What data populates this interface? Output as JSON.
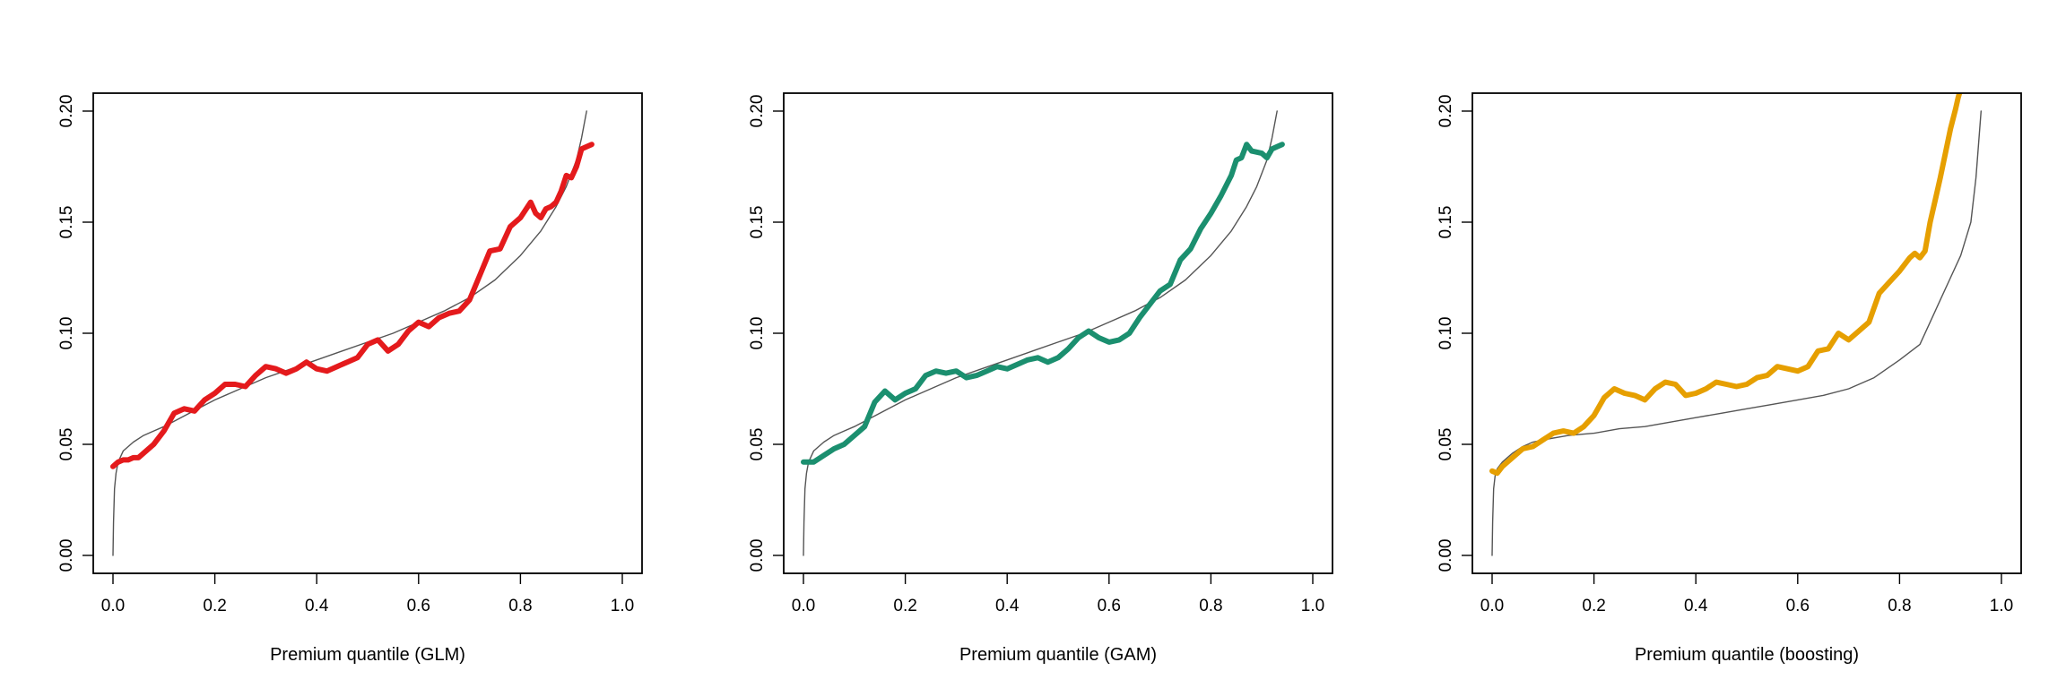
{
  "chart_data": [
    {
      "type": "line",
      "title": "",
      "xlabel": "Premium quantile (GLM)",
      "ylabel": "",
      "xlim": [
        0,
        1
      ],
      "ylim": [
        0,
        0.2
      ],
      "xticks": [
        "0.0",
        "0.2",
        "0.4",
        "0.6",
        "0.8",
        "1.0"
      ],
      "yticks": [
        "0.00",
        "0.05",
        "0.10",
        "0.15",
        "0.20"
      ],
      "grid": false,
      "series": [
        {
          "color": "#e41a1c",
          "x": [
            0.0,
            0.01,
            0.02,
            0.03,
            0.04,
            0.05,
            0.06,
            0.08,
            0.1,
            0.12,
            0.14,
            0.16,
            0.18,
            0.2,
            0.22,
            0.24,
            0.26,
            0.28,
            0.3,
            0.32,
            0.34,
            0.36,
            0.38,
            0.4,
            0.42,
            0.44,
            0.46,
            0.48,
            0.5,
            0.52,
            0.54,
            0.56,
            0.58,
            0.6,
            0.62,
            0.64,
            0.66,
            0.68,
            0.7,
            0.72,
            0.74,
            0.76,
            0.78,
            0.8,
            0.82,
            0.83,
            0.84,
            0.85,
            0.86,
            0.87,
            0.88,
            0.89,
            0.9,
            0.91,
            0.92,
            0.93,
            0.94
          ],
          "y": [
            0.04,
            0.042,
            0.043,
            0.043,
            0.044,
            0.044,
            0.046,
            0.05,
            0.056,
            0.064,
            0.066,
            0.065,
            0.07,
            0.073,
            0.077,
            0.077,
            0.076,
            0.081,
            0.085,
            0.084,
            0.082,
            0.084,
            0.087,
            0.084,
            0.083,
            0.085,
            0.087,
            0.089,
            0.095,
            0.097,
            0.092,
            0.095,
            0.101,
            0.105,
            0.103,
            0.107,
            0.109,
            0.11,
            0.115,
            0.126,
            0.137,
            0.138,
            0.148,
            0.152,
            0.159,
            0.154,
            0.152,
            0.156,
            0.157,
            0.159,
            0.164,
            0.171,
            0.17,
            0.175,
            0.183,
            0.184,
            0.185
          ]
        },
        {
          "color": "#555555",
          "x": [
            0.0,
            0.001,
            0.003,
            0.006,
            0.01,
            0.02,
            0.04,
            0.06,
            0.08,
            0.1,
            0.15,
            0.2,
            0.25,
            0.3,
            0.35,
            0.4,
            0.45,
            0.5,
            0.55,
            0.6,
            0.65,
            0.7,
            0.75,
            0.8,
            0.84,
            0.87,
            0.89,
            0.91,
            0.92,
            0.93
          ],
          "y": [
            0.0,
            0.015,
            0.03,
            0.037,
            0.042,
            0.047,
            0.051,
            0.054,
            0.056,
            0.058,
            0.064,
            0.07,
            0.075,
            0.08,
            0.084,
            0.088,
            0.092,
            0.096,
            0.1,
            0.105,
            0.11,
            0.116,
            0.124,
            0.135,
            0.146,
            0.157,
            0.166,
            0.178,
            0.188,
            0.2
          ]
        }
      ]
    },
    {
      "type": "line",
      "title": "",
      "xlabel": "Premium quantile (GAM)",
      "ylabel": "",
      "xlim": [
        0,
        1
      ],
      "ylim": [
        0,
        0.2
      ],
      "xticks": [
        "0.0",
        "0.2",
        "0.4",
        "0.6",
        "0.8",
        "1.0"
      ],
      "yticks": [
        "0.00",
        "0.05",
        "0.10",
        "0.15",
        "0.20"
      ],
      "grid": false,
      "series": [
        {
          "color": "#1b8f6f",
          "x": [
            0.0,
            0.02,
            0.04,
            0.06,
            0.08,
            0.1,
            0.12,
            0.14,
            0.16,
            0.18,
            0.2,
            0.22,
            0.24,
            0.26,
            0.28,
            0.3,
            0.32,
            0.34,
            0.36,
            0.38,
            0.4,
            0.42,
            0.44,
            0.46,
            0.48,
            0.5,
            0.52,
            0.54,
            0.56,
            0.58,
            0.6,
            0.62,
            0.64,
            0.66,
            0.68,
            0.7,
            0.72,
            0.74,
            0.76,
            0.78,
            0.8,
            0.82,
            0.84,
            0.85,
            0.86,
            0.87,
            0.88,
            0.9,
            0.91,
            0.92,
            0.93,
            0.94
          ],
          "y": [
            0.042,
            0.042,
            0.045,
            0.048,
            0.05,
            0.054,
            0.058,
            0.069,
            0.074,
            0.07,
            0.073,
            0.075,
            0.081,
            0.083,
            0.082,
            0.083,
            0.08,
            0.081,
            0.083,
            0.085,
            0.084,
            0.086,
            0.088,
            0.089,
            0.087,
            0.089,
            0.093,
            0.098,
            0.101,
            0.098,
            0.096,
            0.097,
            0.1,
            0.107,
            0.113,
            0.119,
            0.122,
            0.133,
            0.138,
            0.147,
            0.154,
            0.162,
            0.171,
            0.178,
            0.179,
            0.185,
            0.182,
            0.181,
            0.179,
            0.183,
            0.184,
            0.185
          ]
        },
        {
          "color": "#555555",
          "x": [
            0.0,
            0.001,
            0.003,
            0.006,
            0.01,
            0.02,
            0.04,
            0.06,
            0.08,
            0.1,
            0.15,
            0.2,
            0.25,
            0.3,
            0.35,
            0.4,
            0.45,
            0.5,
            0.55,
            0.6,
            0.65,
            0.7,
            0.75,
            0.8,
            0.84,
            0.87,
            0.89,
            0.91,
            0.92,
            0.93
          ],
          "y": [
            0.0,
            0.015,
            0.03,
            0.037,
            0.042,
            0.047,
            0.051,
            0.054,
            0.056,
            0.058,
            0.064,
            0.07,
            0.075,
            0.08,
            0.084,
            0.088,
            0.092,
            0.096,
            0.1,
            0.105,
            0.11,
            0.116,
            0.124,
            0.135,
            0.146,
            0.157,
            0.166,
            0.178,
            0.188,
            0.2
          ]
        }
      ]
    },
    {
      "type": "line",
      "title": "",
      "xlabel": "Premium quantile (boosting)",
      "ylabel": "",
      "xlim": [
        0,
        1
      ],
      "ylim": [
        0,
        0.2
      ],
      "xticks": [
        "0.0",
        "0.2",
        "0.4",
        "0.6",
        "0.8",
        "1.0"
      ],
      "yticks": [
        "0.00",
        "0.05",
        "0.10",
        "0.15",
        "0.20"
      ],
      "grid": false,
      "series": [
        {
          "color": "#e69f00",
          "x": [
            0.0,
            0.01,
            0.02,
            0.04,
            0.06,
            0.08,
            0.1,
            0.12,
            0.14,
            0.16,
            0.18,
            0.2,
            0.22,
            0.24,
            0.26,
            0.28,
            0.3,
            0.32,
            0.34,
            0.36,
            0.38,
            0.4,
            0.42,
            0.44,
            0.46,
            0.48,
            0.5,
            0.52,
            0.54,
            0.56,
            0.58,
            0.6,
            0.62,
            0.64,
            0.66,
            0.68,
            0.7,
            0.72,
            0.74,
            0.76,
            0.78,
            0.8,
            0.82,
            0.83,
            0.84,
            0.85,
            0.86,
            0.87,
            0.88,
            0.89,
            0.9,
            0.91,
            0.915,
            0.92
          ],
          "y": [
            0.038,
            0.037,
            0.04,
            0.044,
            0.048,
            0.049,
            0.052,
            0.055,
            0.056,
            0.055,
            0.058,
            0.063,
            0.071,
            0.075,
            0.073,
            0.072,
            0.07,
            0.075,
            0.078,
            0.077,
            0.072,
            0.073,
            0.075,
            0.078,
            0.077,
            0.076,
            0.077,
            0.08,
            0.081,
            0.085,
            0.084,
            0.083,
            0.085,
            0.092,
            0.093,
            0.1,
            0.097,
            0.101,
            0.105,
            0.118,
            0.123,
            0.128,
            0.134,
            0.136,
            0.134,
            0.137,
            0.15,
            0.16,
            0.17,
            0.181,
            0.192,
            0.201,
            0.206,
            0.21
          ]
        },
        {
          "color": "#555555",
          "x": [
            0.0,
            0.001,
            0.003,
            0.006,
            0.01,
            0.02,
            0.04,
            0.06,
            0.08,
            0.1,
            0.15,
            0.2,
            0.25,
            0.3,
            0.35,
            0.4,
            0.45,
            0.5,
            0.55,
            0.6,
            0.65,
            0.7,
            0.75,
            0.8,
            0.84,
            0.86,
            0.88,
            0.9,
            0.92,
            0.94,
            0.95,
            0.96
          ],
          "y": [
            0.0,
            0.015,
            0.03,
            0.036,
            0.039,
            0.042,
            0.046,
            0.049,
            0.051,
            0.052,
            0.054,
            0.055,
            0.057,
            0.058,
            0.06,
            0.062,
            0.064,
            0.066,
            0.068,
            0.07,
            0.072,
            0.075,
            0.08,
            0.088,
            0.095,
            0.105,
            0.115,
            0.125,
            0.135,
            0.15,
            0.17,
            0.2
          ]
        }
      ]
    }
  ]
}
